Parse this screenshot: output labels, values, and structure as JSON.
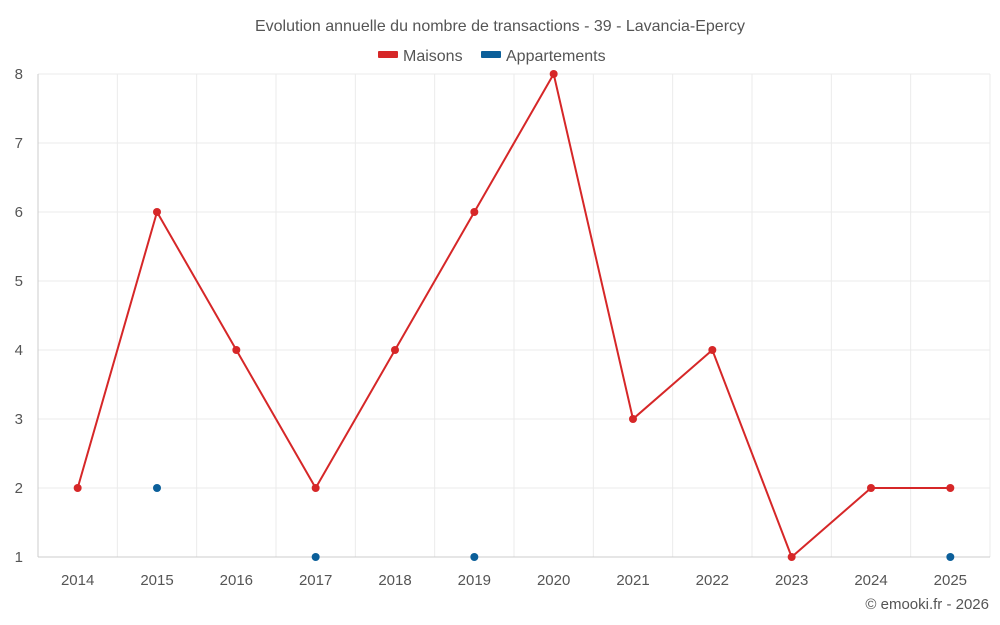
{
  "chart_data": {
    "type": "line",
    "title": "Evolution annuelle du nombre de transactions - 39 - Lavancia-Epercy",
    "xlabel": "",
    "ylabel": "",
    "categories": [
      "2014",
      "2015",
      "2016",
      "2017",
      "2018",
      "2019",
      "2020",
      "2021",
      "2022",
      "2023",
      "2024",
      "2025"
    ],
    "ylim": [
      1,
      8
    ],
    "yticks": [
      1,
      2,
      3,
      4,
      5,
      6,
      7,
      8
    ],
    "grid": true,
    "legend_position": "top-center",
    "series": [
      {
        "name": "Maisons",
        "color": "#d62728",
        "style": "line",
        "values": [
          2,
          6,
          4,
          2,
          4,
          6,
          8,
          3,
          4,
          1,
          2,
          2
        ]
      },
      {
        "name": "Appartements",
        "color": "#0b5f9a",
        "style": "points",
        "values": [
          null,
          2,
          null,
          1,
          null,
          1,
          null,
          null,
          null,
          null,
          null,
          1
        ]
      }
    ],
    "credit": "© emooki.fr - 2026"
  }
}
